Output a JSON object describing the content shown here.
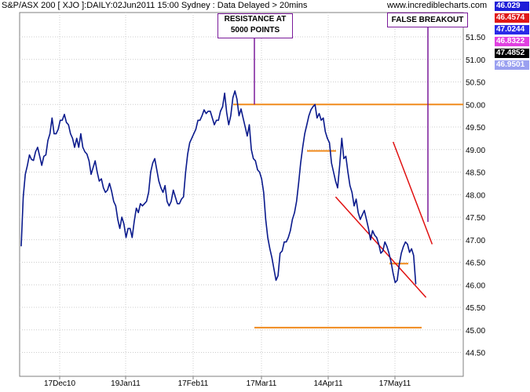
{
  "header": {
    "title": "S&P/ASX 200 [ XJO ]:DAILY:02Jun2011 15:00 Sydney : Data Delayed > 20mins",
    "site": "www.incrediblecharts.com"
  },
  "badges": [
    {
      "text": "46.029",
      "bg": "#1e1ed8",
      "color": "#ffffff"
    },
    {
      "text": "46.4574",
      "bg": "#e01818",
      "color": "#ffffff"
    },
    {
      "text": "47.0244",
      "bg": "#2a2ae8",
      "color": "#ffffff"
    },
    {
      "text": "46.8322",
      "bg": "#e040e0",
      "color": "#ffffff"
    },
    {
      "text": "47.4852",
      "bg": "#000000",
      "color": "#ffffff"
    },
    {
      "text": "46.9501",
      "bg": "#9aa0f0",
      "color": "#ffffff"
    }
  ],
  "annotations": {
    "resistance_line1": "RESISTANCE AT",
    "resistance_line2": "5000 POINTS",
    "false_breakout": "FALSE BREAKOUT"
  },
  "colors": {
    "price": "#0a1a8c",
    "support_resistance": "#f08a1c",
    "channel": "#e01010",
    "annotation_border": "#7a1a9a",
    "grid": "#cccccc"
  },
  "chart_data": {
    "type": "line",
    "title": "S&P/ASX 200 [ XJO ]:DAILY:02Jun2011 15:00 Sydney : Data Delayed > 20mins",
    "xlabel": "",
    "ylabel": "",
    "ylim": [
      44.2,
      51.9
    ],
    "yticks": [
      "44.50",
      "45.00",
      "45.50",
      "46.00",
      "46.50",
      "47.00",
      "47.50",
      "48.00",
      "48.50",
      "49.00",
      "49.50",
      "50.00",
      "50.50",
      "51.00",
      "51.50"
    ],
    "xticks": [
      "17Dec10",
      "19Jan11",
      "17Feb11",
      "17Mar11",
      "14Apr11",
      "17May11"
    ],
    "grid": true,
    "series": [
      {
        "values": [
          46.86,
          47.95,
          48.45,
          48.65,
          48.88,
          48.78,
          48.76,
          48.95,
          49.05,
          48.85,
          48.65,
          48.85,
          48.88,
          49.2,
          49.35,
          49.7,
          49.35,
          49.35,
          49.45,
          49.65,
          49.65,
          49.78,
          49.6,
          49.55,
          49.35,
          49.25,
          49.05,
          49.25,
          49.05,
          49.35,
          49.05,
          48.95,
          48.9,
          48.75,
          48.45,
          48.6,
          48.75,
          48.5,
          48.3,
          48.35,
          48.15,
          48.05,
          48.1,
          48.25,
          48.08,
          47.85,
          47.75,
          47.45,
          47.25,
          47.5,
          47.35,
          47.05,
          47.25,
          47.25,
          47.05,
          47.4,
          47.7,
          47.6,
          47.8,
          47.75,
          47.8,
          47.85,
          48.05,
          48.5,
          48.7,
          48.8,
          48.55,
          48.3,
          48.15,
          48.05,
          48.2,
          47.85,
          47.75,
          47.85,
          48.1,
          47.95,
          47.8,
          47.8,
          47.9,
          47.95,
          48.5,
          48.9,
          49.15,
          49.25,
          49.35,
          49.45,
          49.65,
          49.65,
          49.75,
          49.88,
          49.8,
          49.85,
          49.85,
          49.7,
          49.55,
          49.65,
          49.65,
          49.85,
          49.95,
          50.25,
          49.82,
          49.55,
          49.75,
          50.15,
          50.3,
          50.12,
          49.75,
          49.9,
          49.7,
          49.5,
          49.3,
          49.55,
          49.0,
          48.8,
          48.75,
          48.55,
          48.5,
          48.35,
          48.05,
          47.45,
          47.05,
          46.8,
          46.6,
          46.35,
          46.1,
          46.2,
          46.7,
          46.75,
          46.95,
          46.95,
          47.05,
          47.2,
          47.45,
          47.6,
          47.85,
          48.25,
          48.7,
          49.05,
          49.35,
          49.55,
          49.75,
          49.88,
          49.95,
          50.0,
          49.7,
          49.8,
          49.65,
          49.7,
          49.4,
          49.25,
          49.15,
          48.7,
          48.5,
          48.3,
          48.15,
          48.65,
          49.25,
          48.8,
          48.85,
          48.5,
          48.2,
          48.05,
          47.75,
          47.9,
          47.6,
          47.45,
          47.55,
          47.65,
          47.45,
          47.25,
          47.0,
          47.2,
          47.1,
          47.05,
          46.9,
          46.7,
          46.75,
          46.95,
          46.85,
          46.7,
          46.5,
          46.25,
          46.05,
          46.1,
          46.45,
          46.7,
          46.85,
          46.95,
          46.9,
          46.72,
          46.8,
          46.65,
          46.02
        ]
      }
    ],
    "overlays": {
      "resistance": 50.0,
      "support": 45.05,
      "local_levels": [
        48.97,
        46.47
      ],
      "channel_upper": [
        {
          "x": 181,
          "y": 49.17
        },
        {
          "x": 200,
          "y": 46.9
        }
      ],
      "channel_lower": [
        {
          "x": 153,
          "y": 47.95
        },
        {
          "x": 197,
          "y": 45.72
        }
      ]
    },
    "annotations": [
      "RESISTANCE AT 5000 POINTS",
      "FALSE BREAKOUT"
    ]
  }
}
